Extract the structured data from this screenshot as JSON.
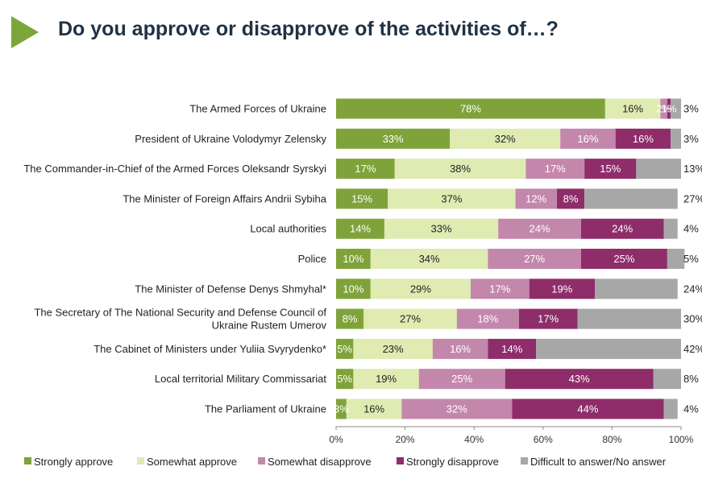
{
  "title": "Do you approve or disapprove of the activities of…?",
  "colors": {
    "accent": "#7ca63b",
    "title": "#1f3244",
    "series": [
      "#7fa33a",
      "#dfebb1",
      "#c487ac",
      "#8e2d69",
      "#a7a7a7"
    ],
    "label_text": [
      "#ffffff",
      "#222222",
      "#ffffff",
      "#ffffff",
      "#222222"
    ]
  },
  "chart_data": {
    "type": "bar",
    "orientation": "horizontal",
    "stacked": true,
    "categories": [
      [
        "The Armed Forces of Ukraine"
      ],
      [
        "President of Ukraine Volodymyr Zelensky"
      ],
      [
        "The Commander-in-Chief of the Armed Forces Oleksandr Syrskyi"
      ],
      [
        "The Minister of Foreign Affairs Andrii Sybiha"
      ],
      [
        "Local authorities"
      ],
      [
        "Police"
      ],
      [
        "The Minister of Defense Denys Shmyhal*"
      ],
      [
        "The Secretary of The National Security and Defense Council of",
        "Ukraine Rustem Umerov"
      ],
      [
        "The Cabinet of Ministers under Yuliia Svyrydenko*"
      ],
      [
        "Local territorial Military Commissariat"
      ],
      [
        "The Parliament of Ukraine"
      ]
    ],
    "series": [
      {
        "name": "Strongly approve",
        "values": [
          78,
          33,
          17,
          15,
          14,
          10,
          10,
          8,
          5,
          5,
          3
        ]
      },
      {
        "name": "Somewhat approve",
        "values": [
          16,
          32,
          38,
          37,
          33,
          34,
          29,
          27,
          23,
          19,
          16
        ]
      },
      {
        "name": "Somewhat disapprove",
        "values": [
          2,
          16,
          17,
          12,
          24,
          27,
          17,
          18,
          16,
          25,
          32
        ]
      },
      {
        "name": "Strongly disapprove",
        "values": [
          1,
          16,
          15,
          8,
          24,
          25,
          19,
          17,
          14,
          43,
          44
        ]
      },
      {
        "name": "Difficult to answer/No answer",
        "values": [
          3,
          3,
          13,
          27,
          4,
          5,
          24,
          30,
          42,
          8,
          4
        ]
      }
    ],
    "xlim": [
      0,
      100
    ],
    "xticks": [
      "0%",
      "20%",
      "40%",
      "60%",
      "80%",
      "100%"
    ],
    "value_suffix": "%",
    "legend_position": "bottom",
    "grid": false
  }
}
